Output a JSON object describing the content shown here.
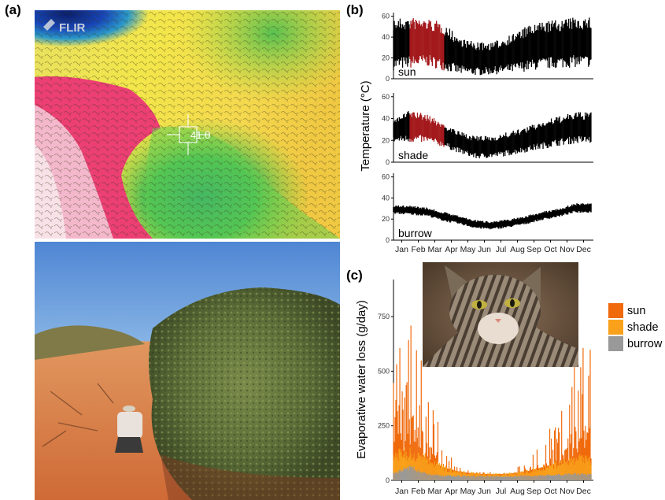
{
  "panels": {
    "a": {
      "label": "(a)",
      "thermal_logo": "FLIR",
      "thermal_readout": "41.0"
    },
    "b": {
      "label": "(b)"
    },
    "c": {
      "label": "(c)"
    }
  },
  "colors": {
    "sun": "#f06a0c",
    "shade": "#f9a11b",
    "burrow": "#999999",
    "highlight": "#a3191c",
    "trace": "#000000"
  },
  "icons": [
    "flir-logo-icon",
    "crosshair-icon",
    "cat-photo",
    "thermal-image",
    "desert-photo"
  ],
  "chart_data": [
    {
      "type": "area",
      "panel": "(b)",
      "ylabel": "Temperature (°C)",
      "months": [
        "Jan",
        "Feb",
        "Mar",
        "Apr",
        "May",
        "Jun",
        "Jul",
        "Aug",
        "Sep",
        "Oct",
        "Nov",
        "Dec"
      ],
      "yticks": [
        0,
        20,
        40,
        60
      ],
      "ylim": [
        0,
        62
      ],
      "grid": false,
      "highlight_period": [
        "Feb",
        "Apr"
      ],
      "series": [
        {
          "name": "sun",
          "monthly_min": [
            8,
            10,
            12,
            8,
            4,
            3,
            4,
            5,
            7,
            9,
            10,
            11
          ],
          "monthly_max": [
            58,
            59,
            58,
            54,
            40,
            35,
            35,
            42,
            50,
            55,
            57,
            59
          ]
        },
        {
          "name": "shade",
          "monthly_min": [
            18,
            18,
            18,
            14,
            8,
            3,
            4,
            6,
            9,
            12,
            15,
            17
          ],
          "monthly_max": [
            40,
            48,
            44,
            36,
            28,
            24,
            24,
            28,
            32,
            38,
            42,
            46
          ]
        },
        {
          "name": "burrow",
          "monthly_min": [
            25,
            24,
            23,
            18,
            15,
            11,
            10,
            12,
            15,
            19,
            22,
            26
          ],
          "monthly_max": [
            33,
            33,
            31,
            27,
            23,
            19,
            18,
            20,
            23,
            27,
            30,
            35
          ]
        }
      ]
    },
    {
      "type": "area",
      "panel": "(c)",
      "ylabel": "Evaporative water loss (g/day)",
      "months": [
        "Jan",
        "Feb",
        "Mar",
        "Apr",
        "May",
        "Jun",
        "Jul",
        "Aug",
        "Sep",
        "Oct",
        "Nov",
        "Dec"
      ],
      "yticks": [
        0,
        250,
        500,
        750
      ],
      "ylim": [
        0,
        920
      ],
      "grid": false,
      "legend": {
        "placement": "right",
        "entries": [
          "sun",
          "shade",
          "burrow"
        ]
      },
      "series": [
        {
          "name": "sun",
          "monthly_peak": [
            520,
            870,
            480,
            180,
            60,
            45,
            40,
            45,
            90,
            200,
            280,
            640
          ]
        },
        {
          "name": "shade",
          "monthly_typical": [
            120,
            130,
            100,
            60,
            40,
            30,
            28,
            30,
            40,
            60,
            80,
            100
          ]
        },
        {
          "name": "burrow",
          "monthly_typical": [
            30,
            60,
            28,
            20,
            20,
            18,
            18,
            18,
            20,
            22,
            25,
            28
          ]
        }
      ]
    }
  ]
}
